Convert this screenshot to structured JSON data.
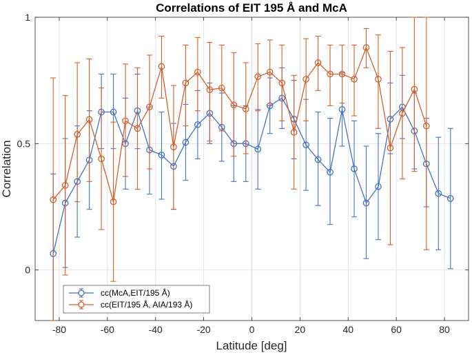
{
  "chart_data": {
    "type": "line",
    "title": "Correlations of EIT 195 Å and McA",
    "xlabel": "Latitude [deg]",
    "ylabel": "Correlation",
    "xlim": [
      -90,
      90
    ],
    "ylim": [
      -0.2,
      1
    ],
    "grid": true,
    "legend_position": "bottom-left",
    "x_ticks": [
      -80,
      -60,
      -40,
      -20,
      0,
      20,
      40,
      60,
      80
    ],
    "x_tick_labels": [
      "-80",
      "-60",
      "-40",
      "-20",
      "0",
      "20",
      "40",
      "60",
      "80"
    ],
    "y_ticks": [
      0,
      0.5,
      1
    ],
    "y_tick_labels": [
      "0",
      "0.5",
      "1"
    ],
    "series": [
      {
        "name": "cc(McA,EIT/195 Å)",
        "color": "#4472C4",
        "x": [
          -82.5,
          -77.5,
          -72.5,
          -67.5,
          -62.5,
          -57.5,
          -52.5,
          -47.5,
          -42.5,
          -37.5,
          -32.5,
          -27.5,
          -22.5,
          -17.5,
          -12.5,
          -7.5,
          -2.5,
          2.5,
          7.5,
          12.5,
          17.5,
          22.5,
          27.5,
          32.5,
          37.5,
          42.5,
          47.5,
          52.5,
          57.5,
          62.5,
          67.5,
          72.5,
          77.5,
          82.5
        ],
        "y": [
          0.065,
          0.265,
          0.35,
          0.435,
          0.625,
          0.625,
          0.5,
          0.63,
          0.475,
          0.455,
          0.41,
          0.505,
          0.575,
          0.62,
          0.565,
          0.5,
          0.5,
          0.478,
          0.65,
          0.68,
          0.597,
          0.495,
          0.437,
          0.387,
          0.635,
          0.4,
          0.265,
          0.33,
          0.597,
          0.645,
          0.55,
          0.42,
          0.303,
          0.283
        ],
        "err_low": [
          -0.2,
          0.01,
          0.13,
          0.24,
          0.48,
          0.48,
          0.32,
          0.48,
          0.3,
          0.28,
          0.24,
          0.355,
          0.44,
          0.5,
          0.43,
          0.35,
          0.35,
          0.32,
          0.54,
          0.56,
          0.44,
          0.315,
          0.255,
          0.18,
          0.49,
          0.21,
          0.045,
          0.12,
          0.46,
          0.52,
          0.4,
          0.25,
          0.08,
          0.005
        ],
        "err_high": [
          0.38,
          0.52,
          0.57,
          0.63,
          0.775,
          0.775,
          0.68,
          0.775,
          0.645,
          0.625,
          0.58,
          0.655,
          0.71,
          0.74,
          0.7,
          0.65,
          0.65,
          0.635,
          0.76,
          0.8,
          0.75,
          0.675,
          0.625,
          0.6,
          0.78,
          0.59,
          0.49,
          0.54,
          0.74,
          0.77,
          0.7,
          0.6,
          0.525,
          0.56
        ]
      },
      {
        "name": "cc(EIT/195 Å, AIA/193 Å)",
        "color": "#D35F2A",
        "x": [
          -82.5,
          -77.5,
          -72.5,
          -67.5,
          -62.5,
          -57.5,
          -52.5,
          -47.5,
          -42.5,
          -37.5,
          -32.5,
          -27.5,
          -22.5,
          -17.5,
          -12.5,
          -7.5,
          -2.5,
          2.5,
          7.5,
          12.5,
          17.5,
          22.5,
          27.5,
          32.5,
          37.5,
          42.5,
          47.5,
          52.5,
          57.5,
          62.5,
          67.5,
          72.5,
          77.5
        ],
        "y": [
          0.278,
          0.335,
          0.537,
          0.595,
          0.44,
          0.27,
          0.59,
          0.56,
          0.645,
          0.805,
          0.487,
          0.74,
          0.783,
          0.713,
          0.72,
          0.653,
          0.637,
          0.765,
          0.783,
          0.74,
          0.545,
          0.755,
          0.82,
          0.775,
          0.775,
          0.755,
          0.88,
          0.755,
          0.483,
          0.62,
          0.715,
          0.57,
          null
        ],
        "err_low": [
          -0.2,
          -0.02,
          0.27,
          0.35,
          0.16,
          -0.045,
          0.37,
          0.32,
          0.4,
          0.68,
          0.24,
          0.57,
          0.63,
          0.51,
          0.55,
          0.45,
          0.46,
          0.63,
          0.65,
          0.59,
          0.32,
          0.59,
          0.71,
          0.65,
          0.66,
          0.61,
          0.8,
          0.56,
          0.1,
          0.36,
          0.39,
          0.08,
          null
        ],
        "err_high": [
          0.76,
          0.69,
          0.82,
          0.835,
          0.72,
          0.585,
          0.815,
          0.8,
          0.85,
          0.925,
          0.73,
          0.89,
          0.92,
          0.9,
          0.89,
          0.86,
          0.82,
          0.895,
          0.91,
          0.89,
          0.77,
          0.915,
          0.925,
          0.89,
          0.89,
          0.89,
          0.955,
          0.93,
          0.865,
          0.88,
          1.0,
          1.0,
          null
        ]
      }
    ]
  }
}
